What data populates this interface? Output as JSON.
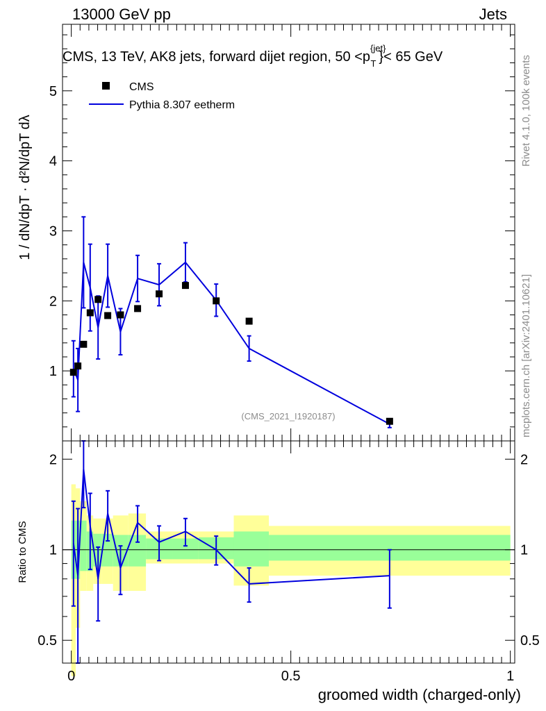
{
  "header": {
    "left": "13000 GeV pp",
    "right": "Jets"
  },
  "main_title": "CMS, 13 TeV, AK8 jets, forward dijet region, 50 <p",
  "title_sup": "{jet}",
  "title_sub": "T",
  "title_tail": "}< 65 GeV",
  "ylabel_top": "1 / dN/dpT · d²N/dpT dλ",
  "side_labels": {
    "rivet": "Rivet 4.1.0,  100k events",
    "mcplots": "mcplots.cern.ch [arXiv:2401.10621]"
  },
  "analysis_tag": "(CMS_2021_I1920187)",
  "legend": {
    "data": "CMS",
    "mc": "Pythia 8.307 eetherm"
  },
  "colors": {
    "mc": "#0000dd",
    "band_inner": "#99ff99",
    "band_outer": "#ffff99",
    "data": "#000000"
  },
  "chart_data": [
    {
      "type": "scatter",
      "panel": "main",
      "xlabel": "groomed width (charged-only)",
      "xlim": [
        -0.02,
        1.01
      ],
      "ylim": [
        0,
        5.95
      ],
      "yticks": [
        1,
        2,
        3,
        4,
        5
      ],
      "ytick_labels": [
        "1",
        "2",
        "3",
        "4",
        "5"
      ],
      "x": [
        0.005,
        0.015,
        0.028,
        0.043,
        0.061,
        0.083,
        0.112,
        0.151,
        0.2,
        0.26,
        0.33,
        0.405,
        0.725
      ],
      "series": [
        {
          "name": "CMS",
          "values": [
            0.98,
            1.07,
            1.38,
            1.83,
            2.02,
            1.79,
            1.8,
            1.89,
            2.1,
            2.22,
            2.0,
            1.71,
            0.28
          ]
        },
        {
          "name": "Pythia 8.307 eetherm",
          "values": [
            1.03,
            0.87,
            2.55,
            2.19,
            1.62,
            2.36,
            1.56,
            2.32,
            2.23,
            2.55,
            2.01,
            1.32,
            0.24
          ],
          "err": [
            0.4,
            0.45,
            0.65,
            0.62,
            0.45,
            0.45,
            0.33,
            0.33,
            0.3,
            0.28,
            0.23,
            0.18,
            0.05
          ]
        }
      ]
    },
    {
      "type": "line",
      "panel": "ratio",
      "ylabel": "Ratio to CMS",
      "ylim": [
        0.42,
        2.3
      ],
      "yticks": [
        0.5,
        1,
        2
      ],
      "ytick_labels": [
        "0.5",
        "1",
        "2"
      ],
      "xticks": [
        0,
        0.5,
        1
      ],
      "xtick_labels": [
        "0",
        "0.5",
        "1"
      ],
      "bins": [
        0,
        0.01,
        0.02,
        0.035,
        0.05,
        0.07,
        0.095,
        0.13,
        0.17,
        0.23,
        0.29,
        0.37,
        0.45,
        1.0
      ],
      "band_inner_lo": [
        0.8,
        0.8,
        0.85,
        0.85,
        0.88,
        0.88,
        0.88,
        0.88,
        0.93,
        0.93,
        0.93,
        0.88,
        0.92
      ],
      "band_inner_hi": [
        1.25,
        1.25,
        1.25,
        1.15,
        1.13,
        1.13,
        1.12,
        1.12,
        1.09,
        1.09,
        1.1,
        1.15,
        1.12
      ],
      "band_outer_lo": [
        0.38,
        0.55,
        0.73,
        0.73,
        0.77,
        0.77,
        0.73,
        0.73,
        0.9,
        0.9,
        0.9,
        0.76,
        0.82
      ],
      "band_outer_hi": [
        1.65,
        1.6,
        1.45,
        1.3,
        1.27,
        1.27,
        1.3,
        1.32,
        1.15,
        1.15,
        1.15,
        1.3,
        1.2
      ],
      "x": [
        0.005,
        0.015,
        0.028,
        0.043,
        0.061,
        0.083,
        0.112,
        0.151,
        0.2,
        0.26,
        0.33,
        0.405,
        0.725
      ],
      "values": [
        1.05,
        0.82,
        1.85,
        1.2,
        0.8,
        1.32,
        0.87,
        1.23,
        1.06,
        1.15,
        1.0,
        0.77,
        0.82
      ],
      "err": [
        0.4,
        0.55,
        0.47,
        0.34,
        0.22,
        0.25,
        0.16,
        0.17,
        0.14,
        0.12,
        0.11,
        0.1,
        0.18
      ]
    }
  ]
}
